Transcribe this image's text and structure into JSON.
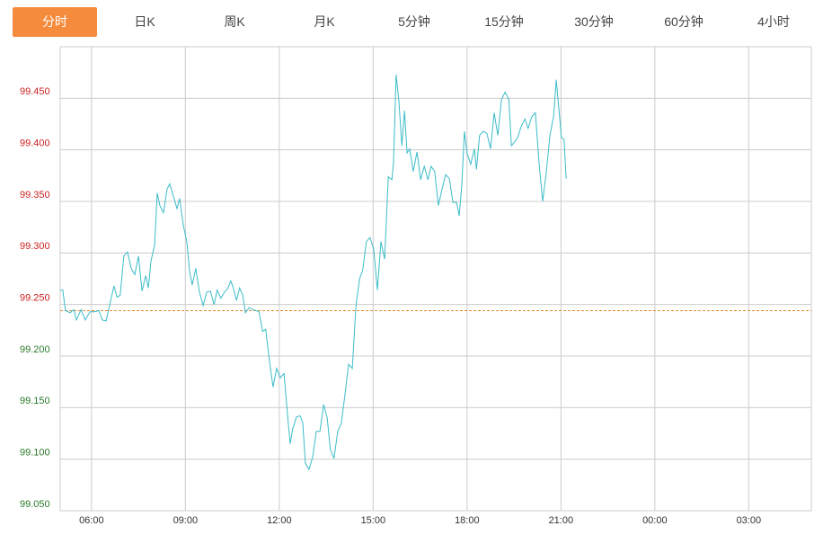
{
  "tabs": [
    "分时",
    "日K",
    "周K",
    "月K",
    "5分钟",
    "15分钟",
    "30分钟",
    "60分钟",
    "4小时"
  ],
  "active_tab": 0,
  "chart_data": {
    "type": "line",
    "x": [
      0,
      5,
      10,
      19,
      26,
      31,
      40,
      48,
      57,
      65,
      74,
      81,
      88,
      95,
      103,
      109,
      115,
      122,
      129,
      136,
      143,
      150,
      157,
      164,
      169,
      174,
      181,
      186,
      191,
      198,
      205,
      210,
      217,
      224,
      229,
      236,
      243,
      248,
      253,
      260,
      267,
      274,
      281,
      288,
      295,
      301,
      308,
      315,
      322,
      327,
      332,
      338,
      344,
      350,
      355,
      362,
      370,
      381,
      388,
      394,
      401,
      408,
      415,
      422,
      429,
      436,
      441,
      446,
      453,
      460,
      465,
      470,
      477,
      484,
      491,
      498,
      505,
      512,
      518,
      525,
      532,
      539,
      546,
      553,
      560,
      567,
      574,
      580,
      587,
      594,
      601,
      608,
      615,
      622,
      629,
      636,
      639,
      644,
      649,
      655,
      660,
      665,
      670,
      677,
      684,
      691,
      698,
      705,
      711,
      718,
      725,
      732,
      739,
      746,
      753,
      760,
      765,
      770,
      775,
      780,
      787,
      794,
      798,
      804,
      811,
      818,
      825,
      832,
      839,
      846,
      853,
      860,
      865,
      870,
      877,
      884,
      891,
      897,
      904,
      911,
      918,
      925,
      932,
      939,
      946,
      951,
      956,
      961,
      966,
      970
    ],
    "series": [
      {
        "color": "#3bbcc8",
        "values": [
          99.264,
          99.264,
          99.244,
          99.242,
          99.245,
          99.235,
          99.245,
          99.235,
          99.243,
          99.243,
          99.244,
          99.235,
          99.234,
          99.25,
          99.268,
          99.257,
          99.259,
          99.297,
          99.301,
          99.285,
          99.279,
          99.297,
          99.263,
          99.278,
          99.266,
          99.292,
          99.308,
          99.358,
          99.346,
          99.339,
          99.362,
          99.367,
          99.355,
          99.343,
          99.353,
          99.327,
          99.31,
          99.282,
          99.269,
          99.285,
          99.262,
          99.249,
          99.262,
          99.263,
          99.25,
          99.264,
          99.256,
          99.262,
          99.266,
          99.273,
          99.266,
          99.254,
          99.266,
          99.259,
          99.242,
          99.247,
          99.245,
          99.243,
          99.224,
          99.226,
          99.196,
          99.17,
          99.188,
          99.179,
          99.183,
          99.142,
          99.115,
          99.13,
          99.141,
          99.142,
          99.135,
          99.096,
          99.09,
          99.102,
          99.127,
          99.127,
          99.153,
          99.14,
          99.109,
          99.101,
          99.127,
          99.135,
          99.163,
          99.192,
          99.188,
          99.249,
          99.275,
          99.283,
          99.311,
          99.315,
          99.304,
          99.264,
          99.311,
          99.294,
          99.374,
          99.371,
          99.388,
          99.473,
          99.449,
          99.404,
          99.438,
          99.397,
          99.401,
          99.379,
          99.398,
          99.371,
          99.384,
          99.371,
          99.384,
          99.379,
          99.346,
          99.362,
          99.376,
          99.372,
          99.349,
          99.349,
          99.336,
          99.366,
          99.418,
          99.397,
          99.386,
          99.401,
          99.381,
          99.414,
          99.418,
          99.416,
          99.401,
          99.436,
          99.414,
          99.449,
          99.456,
          99.449,
          99.404,
          99.407,
          99.412,
          99.423,
          99.43,
          99.421,
          99.432,
          99.436,
          99.388,
          99.35,
          99.379,
          99.414,
          99.433,
          99.468,
          99.44,
          99.412,
          99.41,
          99.372
        ]
      }
    ],
    "xlim": [
      0,
      1440
    ],
    "xticks": [
      {
        "value": 60,
        "label": "06:00"
      },
      {
        "value": 240,
        "label": "09:00"
      },
      {
        "value": 420,
        "label": "12:00"
      },
      {
        "value": 600,
        "label": "15:00"
      },
      {
        "value": 780,
        "label": "18:00"
      },
      {
        "value": 960,
        "label": "21:00"
      },
      {
        "value": 1140,
        "label": "00:00"
      },
      {
        "value": 1320,
        "label": "03:00"
      }
    ],
    "ylim": [
      99.05,
      99.5
    ],
    "yticks": [
      {
        "value": 99.05,
        "label": "99.050"
      },
      {
        "value": 99.1,
        "label": "99.100"
      },
      {
        "value": 99.15,
        "label": "99.150"
      },
      {
        "value": 99.2,
        "label": "99.200"
      },
      {
        "value": 99.25,
        "label": "99.250"
      },
      {
        "value": 99.3,
        "label": "99.300"
      },
      {
        "value": 99.35,
        "label": "99.350"
      },
      {
        "value": 99.4,
        "label": "99.400"
      },
      {
        "value": 99.45,
        "label": "99.450"
      }
    ],
    "reference_line": {
      "value": 99.244,
      "color": "#e0892e"
    },
    "up_color": "#cc2222",
    "down_color": "#2a7a2a",
    "grid": true
  }
}
